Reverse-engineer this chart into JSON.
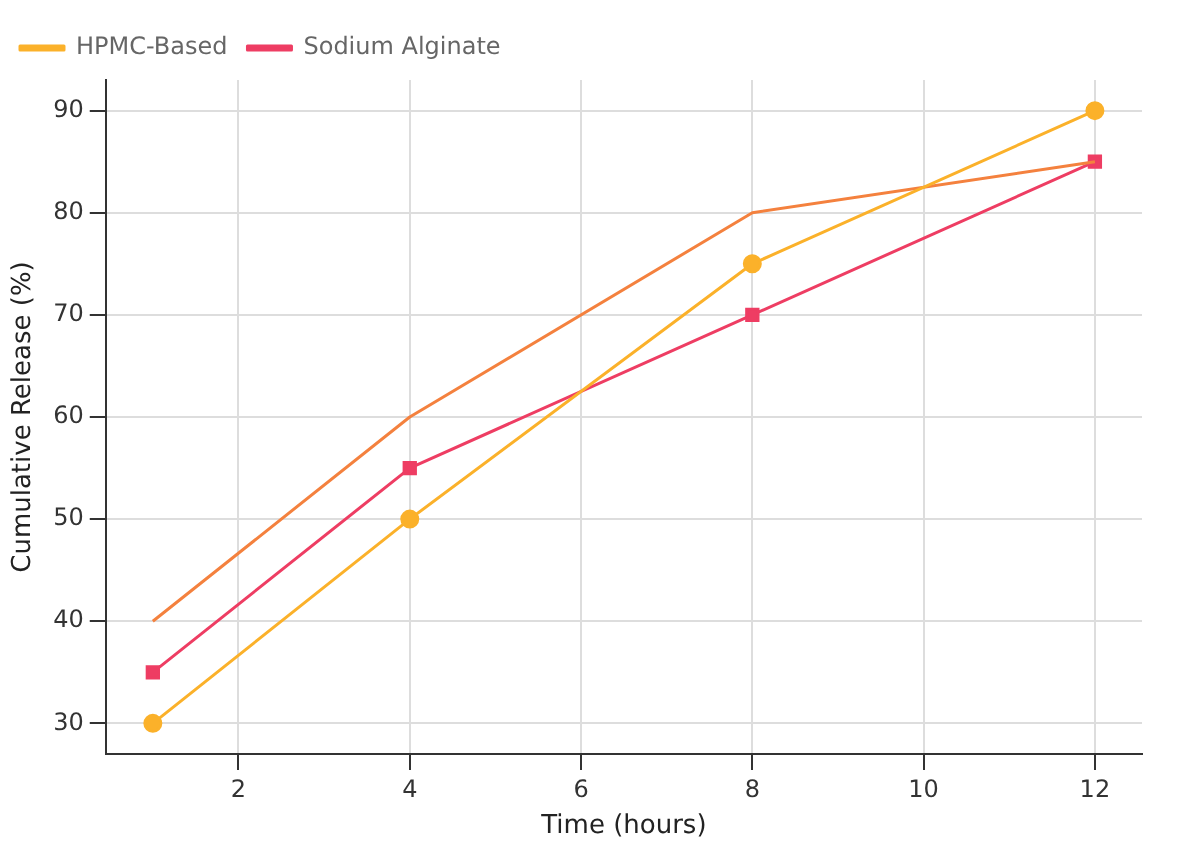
{
  "chart_data": {
    "type": "line",
    "xlabel": "Time (hours)",
    "ylabel": "Cumulative Release (%)",
    "x": [
      1,
      4,
      8,
      12
    ],
    "series": [
      {
        "name": "HPMC-Based",
        "color": "#fbb12a",
        "marker": "circle",
        "values": [
          30,
          50,
          75,
          90
        ]
      },
      {
        "color": "#f4813e",
        "marker": "none",
        "values": [
          40,
          60,
          80,
          85
        ]
      },
      {
        "name": "Sodium Alginate",
        "color": "#ee3d63",
        "marker": "square",
        "values": [
          35,
          55,
          70,
          85
        ]
      }
    ],
    "xlim": [
      0.45,
      12.55
    ],
    "xticks": [
      2,
      4,
      6,
      8,
      10,
      12
    ],
    "ylim": [
      27,
      93
    ],
    "yticks": [
      30,
      40,
      50,
      60,
      70,
      80,
      90
    ],
    "grid": true,
    "legend": "top left"
  }
}
